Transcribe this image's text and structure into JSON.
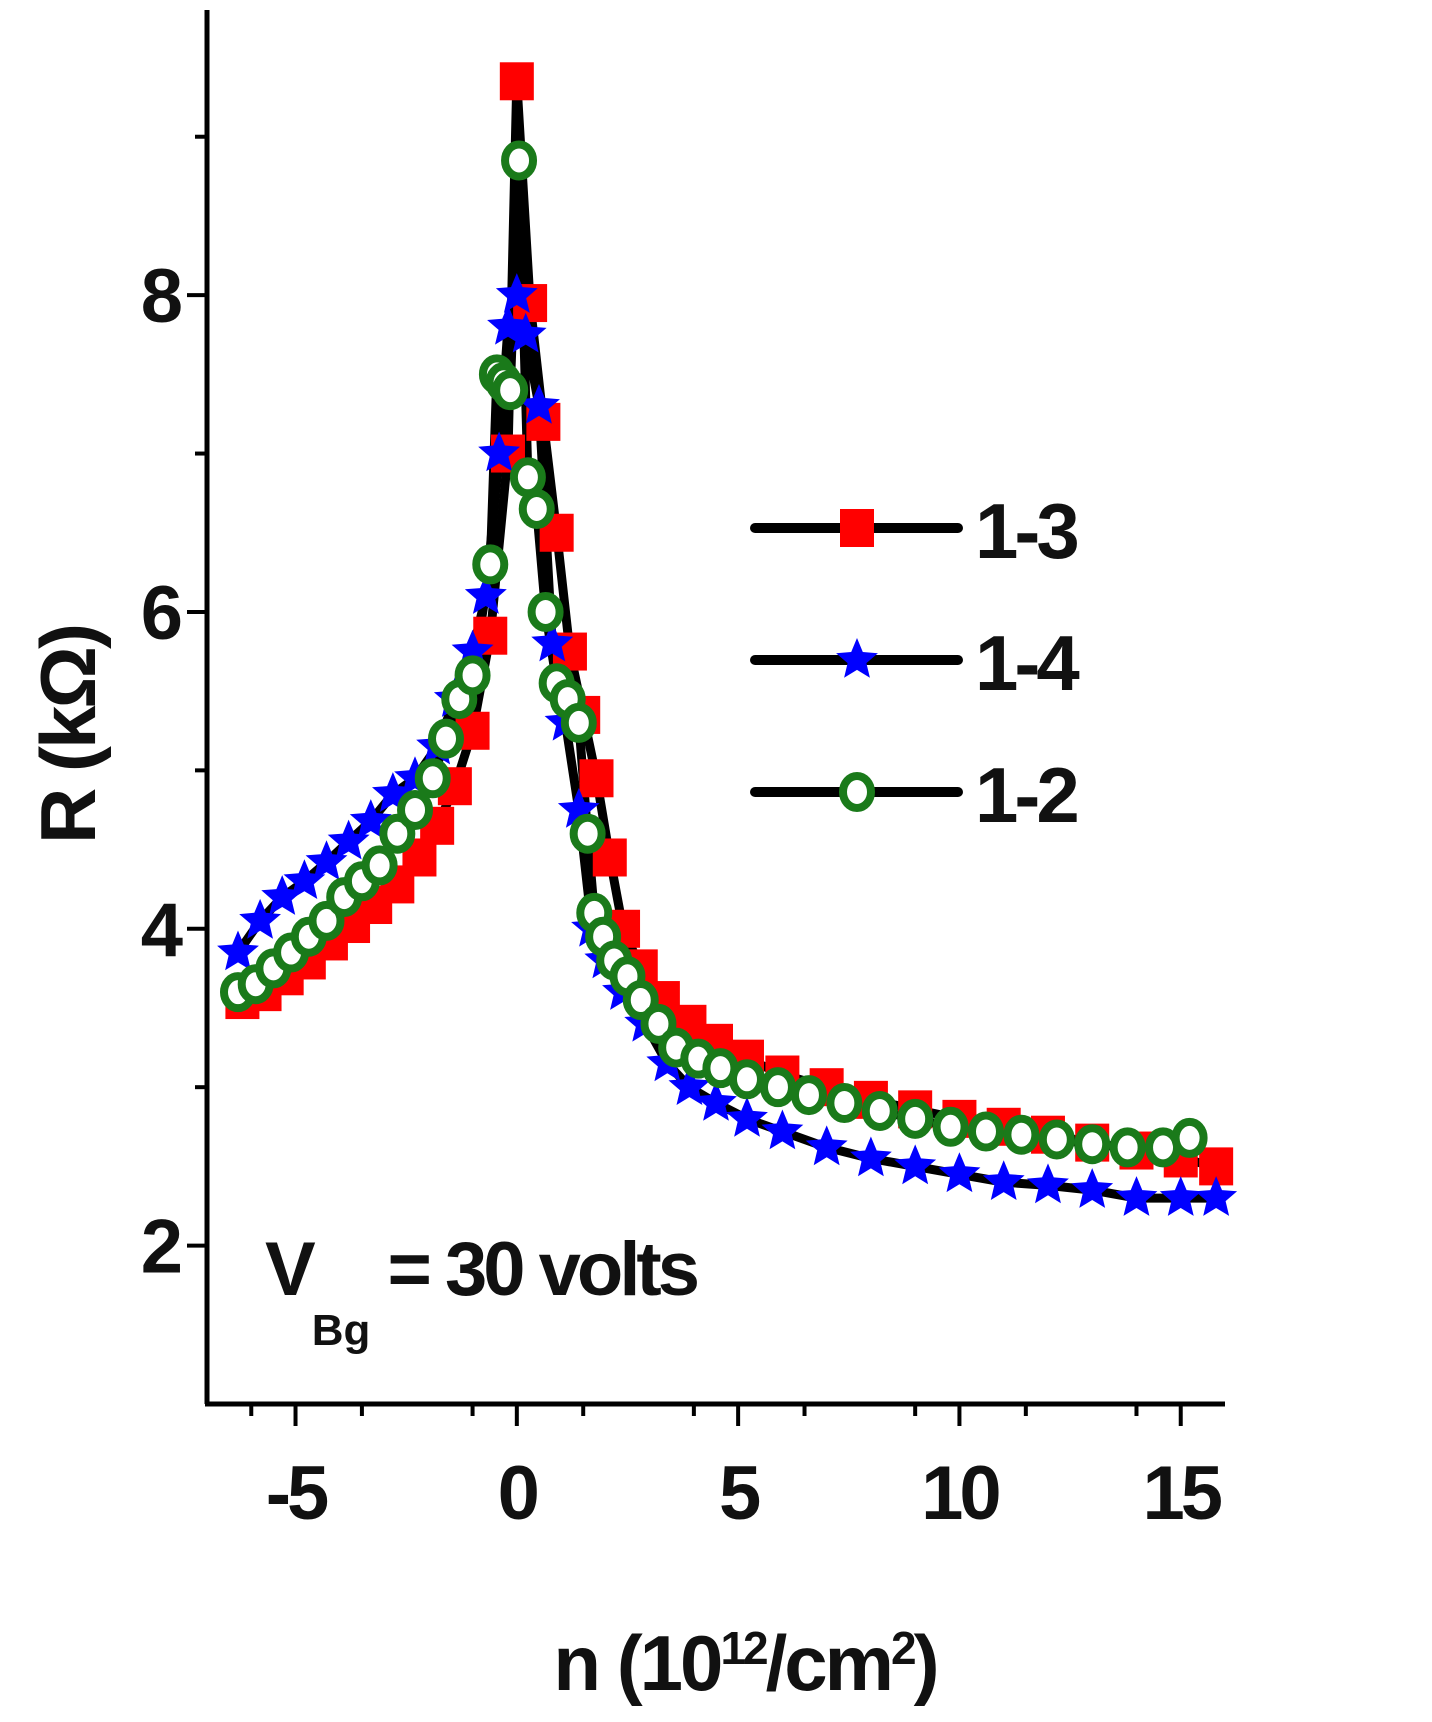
{
  "chart_data": {
    "type": "scatter",
    "xlabel_base": "n (10",
    "xlabel_sup": "12",
    "xlabel_tail": "/cm",
    "xlabel_sup2": "2",
    "xlabel_close": ")",
    "ylabel": "R (kΩ)",
    "xlim": [
      -7,
      16
    ],
    "ylim": [
      1,
      9.8
    ],
    "x_ticks": [
      -5,
      0,
      5,
      10,
      15
    ],
    "y_ticks": [
      2,
      4,
      6,
      8
    ],
    "annotation": {
      "main": "V",
      "sub": "Bg",
      "rest": " = 30 volts"
    },
    "legend_position": "right",
    "series": [
      {
        "name": "1-3",
        "color": "#ff0000",
        "marker": "square",
        "points": [
          [
            -6.2,
            3.55
          ],
          [
            -5.7,
            3.6
          ],
          [
            -5.2,
            3.7
          ],
          [
            -4.7,
            3.8
          ],
          [
            -4.2,
            3.92
          ],
          [
            -3.7,
            4.03
          ],
          [
            -3.2,
            4.15
          ],
          [
            -2.7,
            4.28
          ],
          [
            -2.2,
            4.45
          ],
          [
            -1.8,
            4.65
          ],
          [
            -1.4,
            4.9
          ],
          [
            -1.0,
            5.25
          ],
          [
            -0.6,
            5.85
          ],
          [
            -0.2,
            7.0
          ],
          [
            0.0,
            9.35
          ],
          [
            0.3,
            7.95
          ],
          [
            0.6,
            7.2
          ],
          [
            0.9,
            6.5
          ],
          [
            1.2,
            5.75
          ],
          [
            1.5,
            5.35
          ],
          [
            1.8,
            4.95
          ],
          [
            2.1,
            4.45
          ],
          [
            2.4,
            4.0
          ],
          [
            2.8,
            3.75
          ],
          [
            3.3,
            3.55
          ],
          [
            3.9,
            3.4
          ],
          [
            4.5,
            3.28
          ],
          [
            5.2,
            3.18
          ],
          [
            6.0,
            3.08
          ],
          [
            7.0,
            3.0
          ],
          [
            8.0,
            2.92
          ],
          [
            9.0,
            2.86
          ],
          [
            10.0,
            2.8
          ],
          [
            11.0,
            2.75
          ],
          [
            12.0,
            2.7
          ],
          [
            13.0,
            2.65
          ],
          [
            14.0,
            2.6
          ],
          [
            15.0,
            2.55
          ],
          [
            15.8,
            2.5
          ]
        ]
      },
      {
        "name": "1-4",
        "color": "#0000ff",
        "marker": "star",
        "points": [
          [
            -6.3,
            3.85
          ],
          [
            -5.8,
            4.05
          ],
          [
            -5.3,
            4.2
          ],
          [
            -4.8,
            4.3
          ],
          [
            -4.3,
            4.42
          ],
          [
            -3.8,
            4.55
          ],
          [
            -3.3,
            4.68
          ],
          [
            -2.8,
            4.85
          ],
          [
            -2.3,
            4.95
          ],
          [
            -1.8,
            5.15
          ],
          [
            -1.4,
            5.45
          ],
          [
            -1.0,
            5.75
          ],
          [
            -0.7,
            6.1
          ],
          [
            -0.4,
            7.0
          ],
          [
            -0.2,
            7.8
          ],
          [
            0.0,
            8.0
          ],
          [
            0.2,
            7.75
          ],
          [
            0.5,
            7.3
          ],
          [
            0.8,
            5.8
          ],
          [
            1.1,
            5.3
          ],
          [
            1.4,
            4.75
          ],
          [
            1.7,
            4.0
          ],
          [
            2.0,
            3.8
          ],
          [
            2.4,
            3.6
          ],
          [
            2.9,
            3.4
          ],
          [
            3.4,
            3.15
          ],
          [
            3.9,
            3.0
          ],
          [
            4.5,
            2.9
          ],
          [
            5.2,
            2.8
          ],
          [
            6.0,
            2.72
          ],
          [
            7.0,
            2.62
          ],
          [
            8.0,
            2.55
          ],
          [
            9.0,
            2.5
          ],
          [
            10.0,
            2.45
          ],
          [
            11.0,
            2.4
          ],
          [
            12.0,
            2.38
          ],
          [
            13.0,
            2.35
          ],
          [
            14.0,
            2.3
          ],
          [
            15.0,
            2.3
          ],
          [
            15.8,
            2.3
          ]
        ]
      },
      {
        "name": "1-2",
        "color": "#1a7a1a",
        "marker": "circle",
        "points": [
          [
            -6.3,
            3.6
          ],
          [
            -5.9,
            3.65
          ],
          [
            -5.5,
            3.75
          ],
          [
            -5.1,
            3.85
          ],
          [
            -4.7,
            3.95
          ],
          [
            -4.3,
            4.05
          ],
          [
            -3.9,
            4.2
          ],
          [
            -3.5,
            4.3
          ],
          [
            -3.1,
            4.4
          ],
          [
            -2.7,
            4.6
          ],
          [
            -2.3,
            4.75
          ],
          [
            -1.9,
            4.95
          ],
          [
            -1.6,
            5.2
          ],
          [
            -1.3,
            5.45
          ],
          [
            -1.0,
            5.6
          ],
          [
            -0.6,
            6.3
          ],
          [
            -0.45,
            7.5
          ],
          [
            -0.3,
            7.45
          ],
          [
            -0.15,
            7.4
          ],
          [
            0.05,
            8.85
          ],
          [
            0.25,
            6.85
          ],
          [
            0.45,
            6.65
          ],
          [
            0.65,
            6.0
          ],
          [
            0.9,
            5.55
          ],
          [
            1.15,
            5.45
          ],
          [
            1.4,
            5.3
          ],
          [
            1.6,
            4.6
          ],
          [
            1.75,
            4.1
          ],
          [
            1.95,
            3.95
          ],
          [
            2.2,
            3.8
          ],
          [
            2.5,
            3.7
          ],
          [
            2.8,
            3.55
          ],
          [
            3.2,
            3.4
          ],
          [
            3.6,
            3.25
          ],
          [
            4.1,
            3.18
          ],
          [
            4.6,
            3.12
          ],
          [
            5.2,
            3.05
          ],
          [
            5.9,
            3.0
          ],
          [
            6.6,
            2.95
          ],
          [
            7.4,
            2.9
          ],
          [
            8.2,
            2.85
          ],
          [
            9.0,
            2.8
          ],
          [
            9.8,
            2.75
          ],
          [
            10.6,
            2.72
          ],
          [
            11.4,
            2.7
          ],
          [
            12.2,
            2.67
          ],
          [
            13.0,
            2.64
          ],
          [
            13.8,
            2.62
          ],
          [
            14.6,
            2.62
          ],
          [
            15.2,
            2.68
          ]
        ]
      }
    ],
    "fit_line_color": "#000000"
  }
}
